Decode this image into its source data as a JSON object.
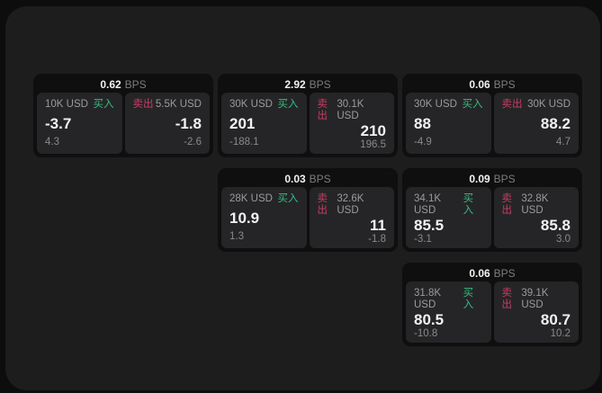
{
  "labels": {
    "bps_unit": "BPS",
    "buy": "买入",
    "sell": "卖出"
  },
  "colors": {
    "background": "#0d0d0d",
    "surface": "#1d1d1e",
    "card": "#0f0f10",
    "tile": "#252527",
    "buy": "#36bd81",
    "sell": "#cc3c64",
    "text_primary": "#f2f2f2",
    "text_secondary": "#9b9b9b",
    "text_muted": "#7d7d7d",
    "text_muted2": "#8a8a8a"
  },
  "cards": [
    {
      "bps": "0.62",
      "grid": {
        "col": 1,
        "row": 1
      },
      "buy": {
        "amount": "10K USD",
        "value": "-3.7",
        "delta": "4.3"
      },
      "sell": {
        "amount": "5.5K USD",
        "value": "-1.8",
        "delta": "-2.6"
      }
    },
    {
      "bps": "2.92",
      "grid": {
        "col": 2,
        "row": 1
      },
      "buy": {
        "amount": "30K USD",
        "value": "201",
        "delta": "-188.1"
      },
      "sell": {
        "amount": "30.1K USD",
        "value": "210",
        "delta": "196.5"
      }
    },
    {
      "bps": "0.06",
      "grid": {
        "col": 3,
        "row": 1
      },
      "buy": {
        "amount": "30K USD",
        "value": "88",
        "delta": "-4.9"
      },
      "sell": {
        "amount": "30K USD",
        "value": "88.2",
        "delta": "4.7"
      }
    },
    {
      "bps": "0.03",
      "grid": {
        "col": 2,
        "row": 2
      },
      "buy": {
        "amount": "28K USD",
        "value": "10.9",
        "delta": "1.3"
      },
      "sell": {
        "amount": "32.6K USD",
        "value": "11",
        "delta": "-1.8"
      }
    },
    {
      "bps": "0.09",
      "grid": {
        "col": 3,
        "row": 2
      },
      "buy": {
        "amount": "34.1K USD",
        "value": "85.5",
        "delta": "-3.1"
      },
      "sell": {
        "amount": "32.8K USD",
        "value": "85.8",
        "delta": "3.0"
      }
    },
    {
      "bps": "0.06",
      "grid": {
        "col": 3,
        "row": 3
      },
      "buy": {
        "amount": "31.8K USD",
        "value": "80.5",
        "delta": "-10.8"
      },
      "sell": {
        "amount": "39.1K USD",
        "value": "80.7",
        "delta": "10.2"
      }
    }
  ]
}
